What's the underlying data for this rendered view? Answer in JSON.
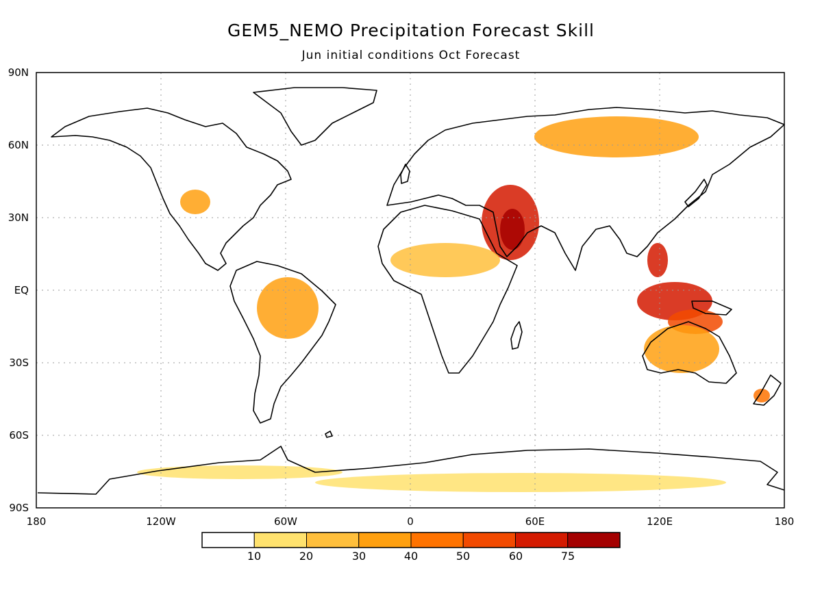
{
  "title": "GEM5_NEMO Precipitation Forecast Skill",
  "subtitle": "Jun initial conditions  Oct Forecast",
  "axes": {
    "x_ticks": [
      "180",
      "120W",
      "60W",
      "0",
      "60E",
      "120E",
      "180"
    ],
    "y_ticks": [
      "90N",
      "60N",
      "30N",
      "EQ",
      "30S",
      "60S",
      "90S"
    ]
  },
  "colorbar": {
    "labels": [
      "10",
      "20",
      "30",
      "40",
      "50",
      "60",
      "75"
    ],
    "colors": [
      "#ffffff",
      "#ffe26e",
      "#ffbf3c",
      "#ffa010",
      "#ff7300",
      "#f24a00",
      "#d41a00",
      "#a40000"
    ]
  },
  "regions": [
    {
      "name": "arabia",
      "level": 6
    },
    {
      "name": "arabia-core",
      "level": 7
    },
    {
      "name": "maritime-continent",
      "level": 6
    },
    {
      "name": "north-australia",
      "level": 5
    },
    {
      "name": "australia",
      "level": 3
    },
    {
      "name": "western-us",
      "level": 3
    },
    {
      "name": "amazon",
      "level": 3
    },
    {
      "name": "sahel",
      "level": 2
    },
    {
      "name": "siberia",
      "level": 3
    },
    {
      "name": "antarctica-coast",
      "level": 1
    },
    {
      "name": "new-zealand",
      "level": 4
    }
  ]
}
